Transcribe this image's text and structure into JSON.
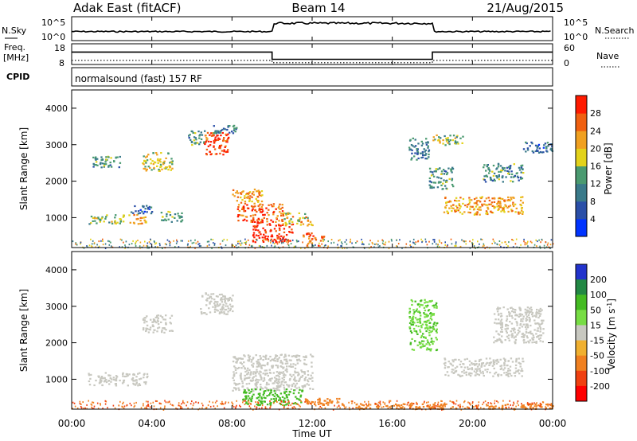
{
  "header": {
    "station": "Adak East (fitACF)",
    "beam": "Beam 14",
    "date": "21/Aug/2015"
  },
  "panel_labels": {
    "nsky": "N.Sky",
    "nsearch": "N.Search",
    "freq": "Freq.",
    "freq_unit": "[MHz]",
    "nave": "Nave",
    "cpid": "CPID",
    "cpid_value": "normalsound (fast) 157 RF",
    "nsky_ticks": [
      "10^5",
      "10^0"
    ],
    "nsearch_ticks": [
      "10^5",
      "10^0"
    ],
    "freq_ticks": [
      "18",
      "8"
    ],
    "nave_ticks": [
      "60",
      "0"
    ]
  },
  "colors": {
    "power_scale": [
      "#0033ff",
      "#2a4fa8",
      "#3a7a8a",
      "#4a9a70",
      "#e3d21a",
      "#f0a020",
      "#f06010",
      "#ff1a00"
    ],
    "velocity_scale": [
      "#2233cc",
      "#228844",
      "#44bb22",
      "#77dd44",
      "#c8c8c0",
      "#f0b030",
      "#f08020",
      "#f04010",
      "#ff0000"
    ],
    "line": "#000000"
  },
  "chart_data": [
    {
      "type": "line",
      "title": "",
      "series": [
        {
          "name": "N.Sky",
          "x": [
            "00:00",
            "02:00",
            "04:00",
            "06:00",
            "08:00",
            "10:00",
            "12:00",
            "14:00",
            "16:00",
            "18:00",
            "20:00",
            "22:00",
            "24:00"
          ],
          "values": [
            1,
            1,
            1,
            1,
            1,
            3,
            3,
            3,
            3,
            1,
            1,
            1,
            1
          ]
        }
      ],
      "ytick_labels": [
        "10^5",
        "10^0"
      ]
    },
    {
      "type": "line",
      "title": "",
      "series": [
        {
          "name": "Freq.",
          "unit": "[MHz]",
          "x": [
            "00:00",
            "10:00",
            "10:00",
            "18:00",
            "18:00",
            "24:00"
          ],
          "values": [
            14,
            14,
            10.5,
            10.5,
            14,
            14
          ]
        },
        {
          "name": "Nave",
          "x": [
            "00:00",
            "10:00",
            "10:00",
            "18:00",
            "18:00",
            "24:00"
          ],
          "values": [
            12,
            12,
            5,
            5,
            12,
            12
          ]
        }
      ],
      "ylim_left": [
        8,
        18
      ],
      "ylim_right": [
        0,
        60
      ]
    },
    {
      "type": "heatmap",
      "title": "",
      "ylabel": "Slant Range [km]",
      "xlabel": "",
      "ylim": [
        180,
        4500
      ],
      "yticks": [
        1000,
        2000,
        3000,
        4000
      ],
      "xticks": [
        "00:00",
        "04:00",
        "08:00",
        "12:00",
        "16:00",
        "20:00",
        "00:00"
      ],
      "colorbar": {
        "label": "Power [dB]",
        "range": [
          0,
          32
        ],
        "ticks": [
          4,
          8,
          12,
          16,
          20,
          24,
          28
        ]
      },
      "regions": [
        {
          "t": [
            0.8,
            2.6
          ],
          "r": [
            850,
            1100
          ],
          "v": 16
        },
        {
          "t": [
            2.8,
            3.8
          ],
          "r": [
            850,
            1100
          ],
          "v": 22
        },
        {
          "t": [
            2.9,
            4.0
          ],
          "r": [
            1100,
            1350
          ],
          "v": 8
        },
        {
          "t": [
            4.4,
            5.5
          ],
          "r": [
            900,
            1200
          ],
          "v": 14
        },
        {
          "t": [
            1.0,
            2.4
          ],
          "r": [
            2400,
            2700
          ],
          "v": 12
        },
        {
          "t": [
            3.5,
            5.0
          ],
          "r": [
            2300,
            2800
          ],
          "v": 18
        },
        {
          "t": [
            5.8,
            6.6
          ],
          "r": [
            3000,
            3400
          ],
          "v": 12
        },
        {
          "t": [
            6.6,
            7.8
          ],
          "r": [
            2750,
            3350
          ],
          "v": 28
        },
        {
          "t": [
            7.0,
            8.2
          ],
          "r": [
            3300,
            3550
          ],
          "v": 10
        },
        {
          "t": [
            8.0,
            9.5
          ],
          "r": [
            1400,
            1800
          ],
          "v": 22
        },
        {
          "t": [
            8.2,
            10.5
          ],
          "r": [
            900,
            1400
          ],
          "v": 26
        },
        {
          "t": [
            9.0,
            11.0
          ],
          "r": [
            350,
            900
          ],
          "v": 30
        },
        {
          "t": [
            10.5,
            12.0
          ],
          "r": [
            800,
            1150
          ],
          "v": 20
        },
        {
          "t": [
            11.5,
            12.6
          ],
          "r": [
            250,
            600
          ],
          "v": 26
        },
        {
          "t": [
            16.8,
            17.8
          ],
          "r": [
            2600,
            3200
          ],
          "v": 10
        },
        {
          "t": [
            17.8,
            19.0
          ],
          "r": [
            1800,
            2400
          ],
          "v": 12
        },
        {
          "t": [
            18.5,
            22.5
          ],
          "r": [
            1100,
            1600
          ],
          "v": 22
        },
        {
          "t": [
            20.5,
            22.5
          ],
          "r": [
            2000,
            2500
          ],
          "v": 12
        },
        {
          "t": [
            22.5,
            24.0
          ],
          "r": [
            2800,
            3100
          ],
          "v": 8
        },
        {
          "t": [
            18.0,
            19.5
          ],
          "r": [
            3000,
            3300
          ],
          "v": 16
        }
      ]
    },
    {
      "type": "heatmap",
      "title": "",
      "ylabel": "Slant Range [km]",
      "xlabel": "Time UT",
      "ylim": [
        180,
        4500
      ],
      "yticks": [
        1000,
        2000,
        3000,
        4000
      ],
      "xticks": [
        "00:00",
        "04:00",
        "08:00",
        "12:00",
        "16:00",
        "20:00",
        "00:00"
      ],
      "colorbar": {
        "label": "Velocity [m s^-1]",
        "ticks": [
          200,
          100,
          50,
          15,
          -15,
          -50,
          -100,
          -200
        ]
      },
      "regions": [
        {
          "t": [
            0.8,
            3.8
          ],
          "r": [
            850,
            1200
          ],
          "v": 0
        },
        {
          "t": [
            3.5,
            5.0
          ],
          "r": [
            2300,
            2800
          ],
          "v": 0
        },
        {
          "t": [
            6.4,
            8.0
          ],
          "r": [
            2800,
            3400
          ],
          "v": 0
        },
        {
          "t": [
            8.0,
            12.0
          ],
          "r": [
            700,
            1700
          ],
          "v": 0
        },
        {
          "t": [
            8.5,
            11.5
          ],
          "r": [
            300,
            750
          ],
          "v": 40
        },
        {
          "t": [
            11.5,
            13.5
          ],
          "r": [
            300,
            500
          ],
          "v": -60
        },
        {
          "t": [
            14.0,
            24.0
          ],
          "r": [
            200,
            350
          ],
          "v": -70
        },
        {
          "t": [
            16.8,
            18.2
          ],
          "r": [
            1800,
            3200
          ],
          "v": 30
        },
        {
          "t": [
            18.5,
            22.5
          ],
          "r": [
            1100,
            1600
          ],
          "v": 0
        },
        {
          "t": [
            21.0,
            23.5
          ],
          "r": [
            2000,
            3000
          ],
          "v": 0
        }
      ]
    }
  ]
}
